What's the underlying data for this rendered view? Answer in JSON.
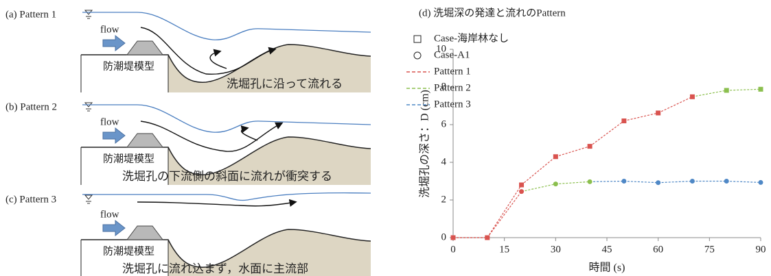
{
  "panels": [
    {
      "label": "(a) Pattern 1",
      "flow": "flow",
      "model": "防潮堤模型",
      "caption": "洗堀孔に沿って流れる"
    },
    {
      "label": "(b) Pattern 2",
      "flow": "flow",
      "model": "防潮堤模型",
      "caption": "洗堀孔の下流側の斜面に流れが衝突する"
    },
    {
      "label": "(c) Pattern 3",
      "flow": "flow",
      "model": "防潮堤模型",
      "caption": "洗堀孔に流れ込まず，水面に主流部"
    }
  ],
  "chart_data": {
    "type": "line",
    "title": "(d) 洗堀深の発達と流れのPattern",
    "x_label": "時間 (s)",
    "y_label": "洗堀孔の深さ：D (cm)",
    "x": [
      0,
      10,
      20,
      30,
      40,
      50,
      60,
      70,
      80,
      90
    ],
    "xlim": [
      0,
      90
    ],
    "xticks": [
      0,
      15,
      30,
      45,
      60,
      75,
      90
    ],
    "ylim": [
      0,
      10
    ],
    "yticks": [
      0,
      2,
      4,
      6,
      8,
      10
    ],
    "patterns": [
      {
        "name": "Pattern 1",
        "color": "#d9534f"
      },
      {
        "name": "Pattern 2",
        "color": "#8bbf4e"
      },
      {
        "name": "Pattern 3",
        "color": "#4f88c6"
      }
    ],
    "series": [
      {
        "name": "Case-海岸林なし",
        "marker": "square",
        "values": [
          0,
          0,
          2.8,
          4.3,
          4.85,
          6.2,
          6.62,
          7.48,
          7.82,
          7.88
        ],
        "pattern": [
          0,
          0,
          0,
          0,
          0,
          0,
          0,
          0,
          1,
          1
        ]
      },
      {
        "name": "Case-A1",
        "marker": "circle",
        "values": [
          0,
          0,
          2.45,
          2.85,
          2.97,
          3.0,
          2.92,
          3.0,
          3.0,
          2.93
        ],
        "pattern": [
          0,
          0,
          0,
          1,
          1,
          2,
          2,
          2,
          2,
          2
        ]
      }
    ]
  }
}
